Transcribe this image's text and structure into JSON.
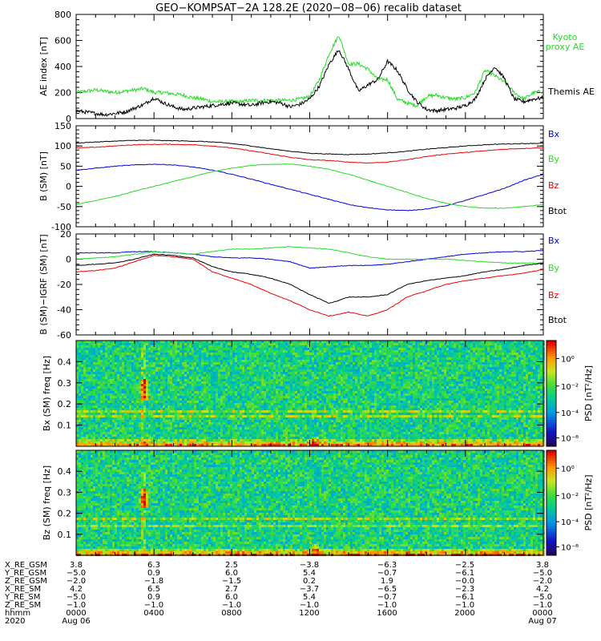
{
  "title": "GEO−KOMPSAT−2A 128.2E (2020−08−06) recalib dataset",
  "colors": {
    "black": "#000000",
    "green": "#22dd22",
    "red": "#ee0000",
    "blue": "#0000dd",
    "bright_green": "#00cc00"
  },
  "chart_data": [
    {
      "id": "ae-index",
      "type": "line",
      "ylabel": "AE index [nT]",
      "ylim": [
        0,
        800
      ],
      "yticks": [
        0,
        200,
        400,
        600,
        800
      ],
      "xlim": [
        0,
        24
      ],
      "legend": [
        "Kyoto proxy AE",
        "Themis AE"
      ],
      "series": [
        {
          "name": "Kyoto proxy AE",
          "color": "#22dd22",
          "x": [
            0,
            0.5,
            1,
            1.5,
            2,
            2.5,
            3,
            3.5,
            4,
            4.5,
            5,
            5.5,
            6,
            6.5,
            7,
            7.5,
            8,
            8.5,
            9,
            9.5,
            10,
            10.5,
            11,
            11.5,
            12,
            12.5,
            13,
            13.5,
            14,
            14.5,
            15,
            15.5,
            16,
            16.5,
            17,
            17.5,
            18,
            18.5,
            19,
            19.5,
            20,
            20.5,
            21,
            21.5,
            22,
            22.5,
            23,
            23.5,
            24
          ],
          "y": [
            200,
            210,
            220,
            210,
            200,
            210,
            220,
            230,
            200,
            200,
            190,
            180,
            160,
            150,
            130,
            130,
            130,
            130,
            140,
            140,
            140,
            140,
            140,
            150,
            170,
            300,
            500,
            640,
            420,
            420,
            380,
            300,
            300,
            150,
            120,
            100,
            170,
            180,
            160,
            150,
            160,
            200,
            370,
            330,
            280,
            200,
            150,
            200,
            210
          ]
        },
        {
          "name": "Themis AE",
          "color": "#000000",
          "x": [
            0,
            0.5,
            1,
            1.5,
            2,
            2.5,
            3,
            3.5,
            4,
            4.5,
            5,
            5.5,
            6,
            6.5,
            7,
            7.5,
            8,
            8.5,
            9,
            9.5,
            10,
            10.5,
            11,
            11.5,
            12,
            12.5,
            13,
            13.5,
            14,
            14.5,
            15,
            15.5,
            16,
            16.5,
            17,
            17.5,
            18,
            18.5,
            19,
            19.5,
            20,
            20.5,
            21,
            21.5,
            22,
            22.5,
            23,
            23.5,
            24
          ],
          "y": [
            60,
            50,
            40,
            30,
            40,
            50,
            80,
            110,
            160,
            120,
            90,
            70,
            80,
            90,
            100,
            110,
            120,
            110,
            100,
            120,
            130,
            120,
            90,
            110,
            150,
            250,
            420,
            530,
            380,
            210,
            260,
            300,
            440,
            370,
            230,
            130,
            70,
            60,
            70,
            80,
            100,
            150,
            300,
            400,
            310,
            150,
            130,
            150,
            160
          ]
        }
      ]
    },
    {
      "id": "b-sm",
      "type": "line",
      "ylabel": "B (SM) [nT]",
      "ylim": [
        -100,
        150
      ],
      "yticks": [
        -100,
        -50,
        0,
        50,
        100,
        150
      ],
      "xlim": [
        0,
        24
      ],
      "legend": [
        "Bx",
        "By",
        "Bz",
        "Btot"
      ],
      "series": [
        {
          "name": "Btot",
          "color": "#000000",
          "x": [
            0,
            1,
            2,
            3,
            4,
            5,
            6,
            7,
            8,
            9,
            10,
            11,
            12,
            13,
            14,
            15,
            16,
            17,
            18,
            19,
            20,
            21,
            22,
            23,
            24
          ],
          "y": [
            107,
            110,
            112,
            114,
            114,
            113,
            112,
            110,
            106,
            100,
            93,
            87,
            82,
            80,
            79,
            80,
            83,
            87,
            92,
            96,
            100,
            103,
            105,
            106,
            107
          ]
        },
        {
          "name": "Bz",
          "color": "#ee0000",
          "x": [
            0,
            1,
            2,
            3,
            4,
            5,
            6,
            7,
            8,
            9,
            10,
            11,
            12,
            13,
            14,
            15,
            16,
            17,
            18,
            19,
            20,
            21,
            22,
            23,
            24
          ],
          "y": [
            95,
            97,
            100,
            103,
            104,
            104,
            103,
            100,
            95,
            88,
            80,
            72,
            66,
            64,
            60,
            58,
            60,
            66,
            74,
            80,
            84,
            88,
            92,
            94,
            96
          ]
        },
        {
          "name": "Bx",
          "color": "#0000dd",
          "x": [
            0,
            1,
            2,
            3,
            4,
            5,
            6,
            7,
            8,
            9,
            10,
            11,
            12,
            13,
            14,
            15,
            16,
            17,
            18,
            19,
            20,
            21,
            22,
            23,
            24
          ],
          "y": [
            40,
            45,
            50,
            53,
            55,
            53,
            48,
            40,
            30,
            18,
            5,
            -7,
            -20,
            -32,
            -45,
            -53,
            -58,
            -60,
            -56,
            -48,
            -35,
            -20,
            -5,
            15,
            30
          ]
        },
        {
          "name": "By",
          "color": "#22dd22",
          "x": [
            0,
            1,
            2,
            3,
            4,
            5,
            6,
            7,
            8,
            9,
            10,
            11,
            12,
            13,
            14,
            15,
            16,
            17,
            18,
            19,
            20,
            21,
            22,
            23,
            24
          ],
          "y": [
            -45,
            -35,
            -25,
            -12,
            0,
            12,
            24,
            36,
            45,
            52,
            55,
            55,
            50,
            42,
            30,
            15,
            0,
            -15,
            -30,
            -42,
            -50,
            -54,
            -54,
            -50,
            -45
          ]
        }
      ]
    },
    {
      "id": "b-minus-igrf",
      "type": "line",
      "ylabel": "B (SM)−IGRF (SM) [nT]",
      "ylim": [
        -60,
        20
      ],
      "yticks": [
        -60,
        -40,
        -20,
        0,
        20
      ],
      "xlim": [
        0,
        24
      ],
      "legend": [
        "Bx",
        "By",
        "Bz",
        "Btot"
      ],
      "series": [
        {
          "name": "Bx",
          "color": "#0000dd",
          "x": [
            0,
            1,
            2,
            3,
            4,
            5,
            6,
            7,
            8,
            9,
            10,
            11,
            12,
            13,
            14,
            15,
            16,
            17,
            18,
            19,
            20,
            21,
            22,
            23,
            24
          ],
          "y": [
            5,
            5,
            5,
            6,
            6,
            5,
            4,
            2,
            1,
            1,
            0,
            -2,
            -7,
            -6,
            -5,
            -5,
            -4,
            -2,
            0,
            2,
            4,
            5,
            6,
            6,
            7
          ]
        },
        {
          "name": "By",
          "color": "#22dd22",
          "x": [
            0,
            1,
            2,
            3,
            4,
            5,
            6,
            7,
            8,
            9,
            10,
            11,
            12,
            13,
            14,
            15,
            16,
            17,
            18,
            19,
            20,
            21,
            22,
            23,
            24
          ],
          "y": [
            0,
            1,
            2,
            4,
            6,
            5,
            4,
            6,
            8,
            8,
            9,
            10,
            9,
            8,
            5,
            2,
            0,
            0,
            0,
            0,
            -1,
            -2,
            -3,
            -3,
            -3
          ]
        },
        {
          "name": "Btot",
          "color": "#000000",
          "x": [
            0,
            1,
            2,
            3,
            4,
            5,
            6,
            7,
            8,
            9,
            10,
            11,
            12,
            13,
            14,
            15,
            16,
            17,
            18,
            19,
            20,
            21,
            22,
            23,
            24
          ],
          "y": [
            -5,
            -4,
            -3,
            0,
            4,
            3,
            1,
            -6,
            -10,
            -12,
            -15,
            -20,
            -28,
            -35,
            -30,
            -30,
            -28,
            -20,
            -17,
            -15,
            -13,
            -10,
            -8,
            -5,
            -3
          ]
        },
        {
          "name": "Bz",
          "color": "#ee0000",
          "x": [
            0,
            1,
            2,
            3,
            4,
            5,
            6,
            7,
            8,
            9,
            10,
            11,
            12,
            13,
            14,
            15,
            16,
            17,
            18,
            19,
            20,
            21,
            22,
            23,
            24
          ],
          "y": [
            -10,
            -9,
            -7,
            -2,
            3,
            2,
            0,
            -10,
            -15,
            -20,
            -27,
            -33,
            -40,
            -45,
            -42,
            -45,
            -40,
            -30,
            -25,
            -20,
            -17,
            -15,
            -13,
            -11,
            -8
          ]
        }
      ]
    },
    {
      "id": "bx-spectrogram",
      "type": "heatmap",
      "ylabel": "Bx (SM) freq [Hz]",
      "ylim": [
        0,
        0.5
      ],
      "yticks": [
        0.1,
        0.2,
        0.3,
        0.4
      ],
      "xlim": [
        0,
        24
      ],
      "colorbar_label": "PSD [nT²/Hz]",
      "colorbar_ticks": [
        "10⁰",
        "10⁻²",
        "10⁻⁴",
        "10⁻⁶"
      ],
      "features": {
        "wave_packet_time_h": 3.5,
        "wave_packet_freq_hz": [
          0.22,
          0.32
        ],
        "harmonic_line_hz": 0.17
      }
    },
    {
      "id": "bz-spectrogram",
      "type": "heatmap",
      "ylabel": "Bz (SM) freq [Hz]",
      "ylim": [
        0,
        0.5
      ],
      "yticks": [
        0.1,
        0.2,
        0.3,
        0.4
      ],
      "xlim": [
        0,
        24
      ],
      "colorbar_label": "PSD [nT²/Hz]",
      "colorbar_ticks": [
        "10⁰",
        "10⁻²",
        "10⁻⁴",
        "10⁻⁶"
      ],
      "features": {
        "wave_packet_time_h": 3.5,
        "wave_packet_freq_hz": [
          0.22,
          0.32
        ],
        "harmonic_line_hz": 0.17
      }
    }
  ],
  "ephemeris": {
    "rows": [
      {
        "label": "X_RE_GSM",
        "values": [
          "3.8",
          "6.3",
          "2.5",
          "−3.8",
          "−6.3",
          "−2.5",
          "3.8"
        ]
      },
      {
        "label": "Y_RE_GSM",
        "values": [
          "−5.0",
          "0.9",
          "6.0",
          "5.4",
          "−0.7",
          "−6.1",
          "−5.0"
        ]
      },
      {
        "label": "Z_RE_GSM",
        "values": [
          "−2.0",
          "−1.8",
          "−1.5",
          "0.2",
          "1.9",
          "−0.0",
          "−2.0"
        ]
      },
      {
        "label": "X_RE_SM",
        "values": [
          "4.2",
          "6.5",
          "2.7",
          "−3.7",
          "−6.5",
          "−2.3",
          "4.2"
        ]
      },
      {
        "label": "Y_RE_SM",
        "values": [
          "−5.0",
          "0.9",
          "6.0",
          "5.4",
          "−0.7",
          "−6.1",
          "−5.0"
        ]
      },
      {
        "label": "Z_RE_SM",
        "values": [
          "−1.0",
          "−1.0",
          "−1.0",
          "−1.0",
          "−1.0",
          "−1.0",
          "−1.0"
        ]
      },
      {
        "label": "hhmm",
        "values": [
          "0000",
          "0400",
          "0800",
          "1200",
          "1600",
          "2000",
          "0000"
        ]
      },
      {
        "label": "2020",
        "values": [
          "Aug 06",
          "",
          "",
          "",
          "",
          "",
          "Aug 07"
        ]
      }
    ]
  }
}
